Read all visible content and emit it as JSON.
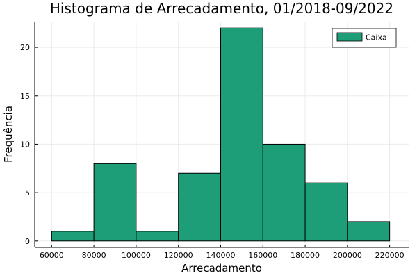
{
  "chart_data": {
    "type": "bar",
    "title": "Histograma de Arrecadamento, 01/2018-09/2022",
    "xlabel": "Arrecadamento",
    "ylabel": "Frequência",
    "bin_edges": [
      60000,
      80000,
      100000,
      120000,
      140000,
      160000,
      180000,
      200000,
      220000
    ],
    "series": [
      {
        "name": "Caixa",
        "values": [
          1,
          8,
          1,
          7,
          22,
          10,
          6,
          2
        ]
      }
    ],
    "xlim": [
      52000,
      229000
    ],
    "ylim": [
      -0.66,
      22.66
    ],
    "x_ticks": [
      60000,
      80000,
      100000,
      120000,
      140000,
      160000,
      180000,
      200000,
      220000
    ],
    "x_tick_labels": [
      "60000",
      "80000",
      "100000",
      "120000",
      "140000",
      "160000",
      "180000",
      "200000",
      "220000"
    ],
    "y_ticks": [
      0,
      5,
      10,
      15,
      20
    ],
    "y_tick_labels": [
      "0",
      "5",
      "10",
      "15",
      "20"
    ],
    "grid": true,
    "legend_position": "top-right",
    "colors": {
      "bar": "#1e9e78",
      "bar_edge": "#000000",
      "grid": "#ebebeb"
    }
  }
}
